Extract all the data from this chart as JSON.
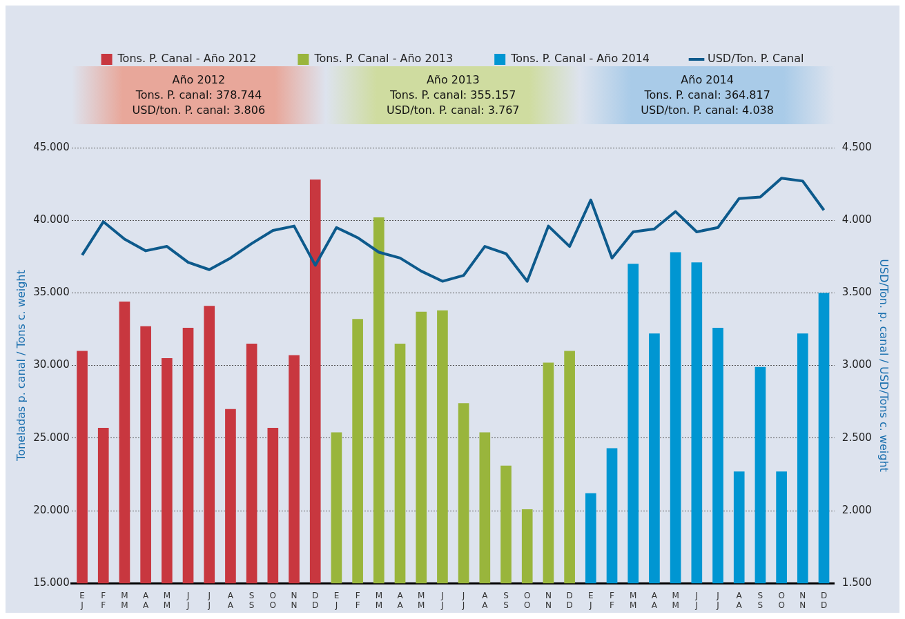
{
  "chart_data": {
    "type": "bar",
    "categories": [
      "E\nJ",
      "F\nF",
      "M\nM",
      "A\nA",
      "M\nM",
      "J\nJ",
      "J\nJ",
      "A\nA",
      "S\nS",
      "O\nO",
      "N\nN",
      "D\nD",
      "E\nJ",
      "F\nF",
      "M\nM",
      "A\nA",
      "M\nM",
      "J\nJ",
      "J\nJ",
      "A\nA",
      "S\nS",
      "O\nO",
      "N\nN",
      "D\nD",
      "E\nJ",
      "F\nF",
      "M\nM",
      "A\nA",
      "M\nM",
      "J\nJ",
      "J\nJ",
      "A\nA",
      "S\nS",
      "O\nO",
      "N\nN",
      "D\nD"
    ],
    "ylabel": "Toneladas p. canal / Tons c. weight",
    "y2label": "USD/Ton. p. canal / USD/Tons c. weight",
    "ylim": [
      15000,
      45000
    ],
    "yticks": [
      {
        "value": 15000,
        "label": "15.000"
      },
      {
        "value": 20000,
        "label": "20.000"
      },
      {
        "value": 25000,
        "label": "25.000"
      },
      {
        "value": 30000,
        "label": "30.000"
      },
      {
        "value": 35000,
        "label": "35.000"
      },
      {
        "value": 40000,
        "label": "40.000"
      },
      {
        "value": 45000,
        "label": "45.000"
      }
    ],
    "y2lim": [
      1500,
      4500
    ],
    "y2ticks": [
      {
        "value": 1500,
        "label": "1.500"
      },
      {
        "value": 2000,
        "label": "2.000"
      },
      {
        "value": 2500,
        "label": "2.500"
      },
      {
        "value": 3000,
        "label": "3.000"
      },
      {
        "value": 3500,
        "label": "3.500"
      },
      {
        "value": 4000,
        "label": "4.000"
      },
      {
        "value": 4500,
        "label": "4.500"
      }
    ],
    "grid": "y",
    "legend": "top",
    "marker": "none",
    "line_style": "solid",
    "annotations": [
      "Año 2012\nTons. P. canal: 378.744\nUSD/ton. P. canal: 3.806",
      "Año 2013\nTons. P. canal: 355.157\nUSD/ton. P. canal: 3.767",
      "Año 2014\nTons. P. canal: 364.817\nUSD/ton. P. canal: 4.038"
    ],
    "series": [
      {
        "name": "Tons. P. Canal - Año 2012",
        "color": "#c8373f",
        "values": [
          31000,
          25700,
          34400,
          32700,
          30500,
          32600,
          34100,
          27000,
          31500,
          25700,
          30700,
          42800,
          null,
          null,
          null,
          null,
          null,
          null,
          null,
          null,
          null,
          null,
          null,
          null,
          null,
          null,
          null,
          null,
          null,
          null,
          null,
          null,
          null,
          null,
          null,
          null
        ]
      },
      {
        "name": "Tons. P. Canal - Año 2013",
        "color": "#99b53c",
        "values": [
          null,
          null,
          null,
          null,
          null,
          null,
          null,
          null,
          null,
          null,
          null,
          null,
          25400,
          33200,
          40200,
          31500,
          33700,
          33800,
          27400,
          25400,
          23100,
          20100,
          30200,
          31000,
          null,
          null,
          null,
          null,
          null,
          null,
          null,
          null,
          null,
          null,
          null,
          null
        ]
      },
      {
        "name": "Tons. P. Canal - Año 2014",
        "color": "#0096d2",
        "values": [
          null,
          null,
          null,
          null,
          null,
          null,
          null,
          null,
          null,
          null,
          null,
          null,
          null,
          null,
          null,
          null,
          null,
          null,
          null,
          null,
          null,
          null,
          null,
          null,
          21200,
          24300,
          37000,
          32200,
          37800,
          37100,
          32600,
          22700,
          29900,
          22700,
          32200,
          35000
        ]
      },
      {
        "name": "USD/Ton. P. Canal",
        "type": "line",
        "axis": "y2",
        "color": "#0d5a8c",
        "values": [
          3760,
          3990,
          3870,
          3790,
          3820,
          3710,
          3660,
          3740,
          3840,
          3930,
          3960,
          3690,
          3950,
          3880,
          3780,
          3740,
          3650,
          3580,
          3620,
          3820,
          3770,
          3580,
          3960,
          3820,
          4140,
          3740,
          3920,
          3940,
          4060,
          3920,
          3950,
          4150,
          4160,
          4290,
          4270,
          4070
        ]
      }
    ]
  }
}
